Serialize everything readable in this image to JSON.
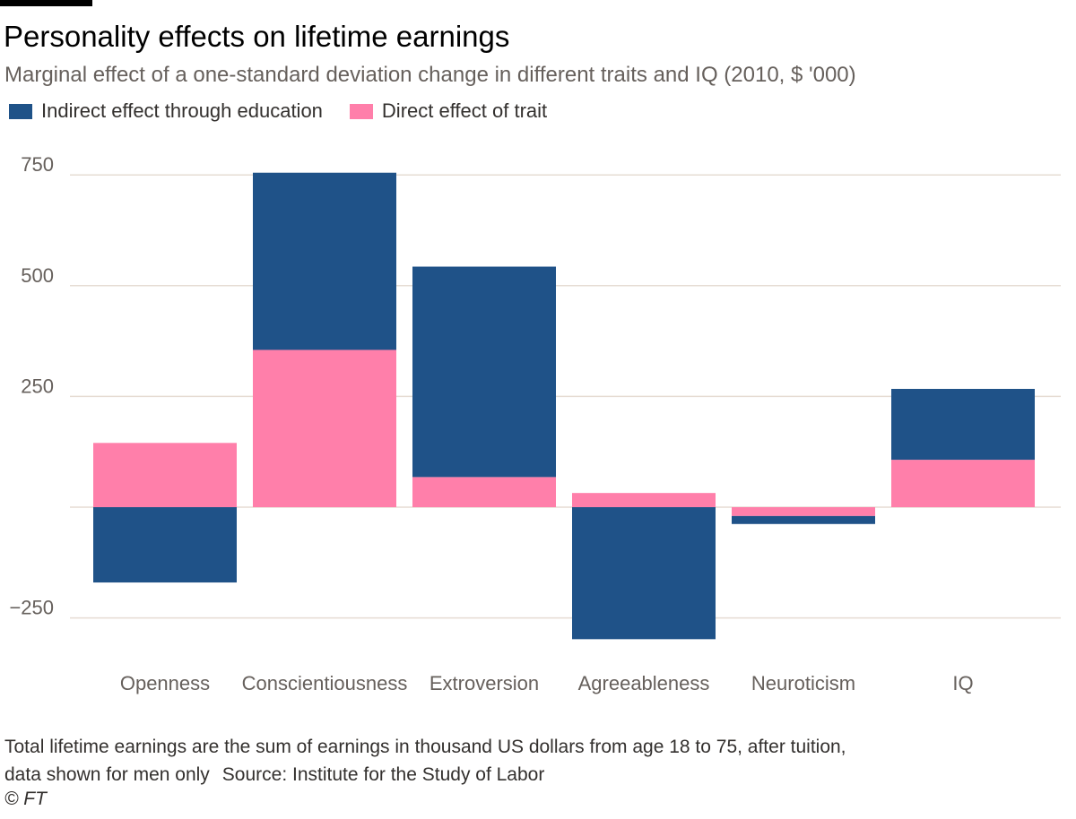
{
  "title": "Personality effects on lifetime earnings",
  "subtitle": "Marginal effect of a one-standard deviation change in different traits and IQ (2010, $ '000)",
  "legend": {
    "items": [
      {
        "label": "Indirect effect through education",
        "color": "#1f5288"
      },
      {
        "label": "Direct effect of trait",
        "color": "#ff7faa"
      }
    ]
  },
  "chart_data": {
    "type": "bar",
    "stacked": true,
    "categories": [
      "Openness",
      "Conscientiousness",
      "Extroversion",
      "Agreeableness",
      "Neuroticism",
      "IQ"
    ],
    "series": [
      {
        "name": "Direct effect of trait",
        "color": "#ff7faa",
        "values": [
          145,
          355,
          68,
          32,
          -20,
          107
        ]
      },
      {
        "name": "Indirect effect through education",
        "color": "#1f5288",
        "values": [
          -170,
          400,
          475,
          -298,
          -18,
          160
        ]
      }
    ],
    "ylim": [
      -300,
      780
    ],
    "yticks": [
      -250,
      250,
      500,
      750
    ],
    "ytick_labels": [
      "−250",
      "250",
      "500",
      "750"
    ],
    "grid": true,
    "legend_position": "top-left",
    "xlabel": "",
    "ylabel": ""
  },
  "footnote": {
    "line1": "Total lifetime earnings are the sum of earnings in thousand US dollars from age 18 to 75, after tuition,",
    "line2": "data shown for men only",
    "source": "Source: Institute for the Study of Labor"
  },
  "copyright": "© FT"
}
